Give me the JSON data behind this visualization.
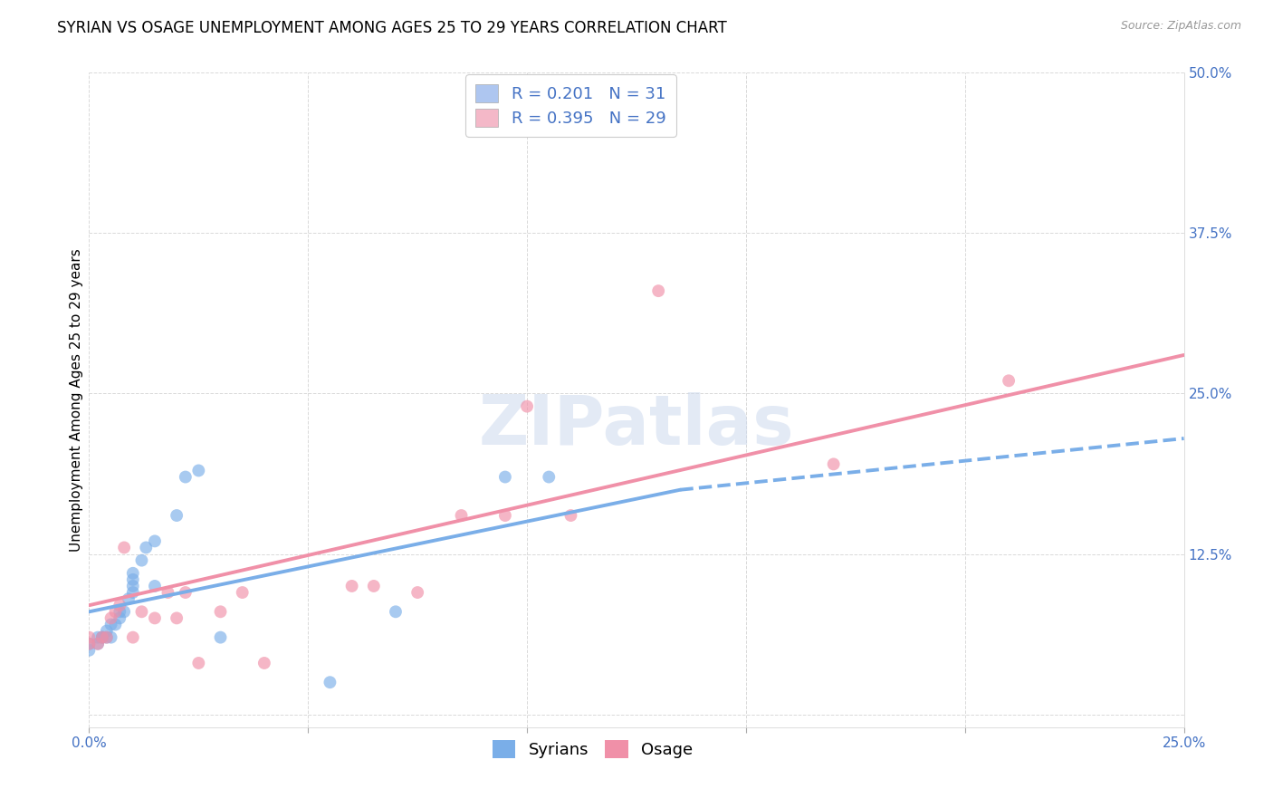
{
  "title": "SYRIAN VS OSAGE UNEMPLOYMENT AMONG AGES 25 TO 29 YEARS CORRELATION CHART",
  "source": "Source: ZipAtlas.com",
  "ylabel": "Unemployment Among Ages 25 to 29 years",
  "xlim": [
    0.0,
    0.25
  ],
  "ylim": [
    -0.01,
    0.5
  ],
  "xticks": [
    0.0,
    0.05,
    0.1,
    0.15,
    0.2,
    0.25
  ],
  "yticks": [
    0.0,
    0.125,
    0.25,
    0.375,
    0.5
  ],
  "syrians_x": [
    0.0,
    0.0,
    0.002,
    0.002,
    0.003,
    0.003,
    0.004,
    0.004,
    0.005,
    0.005,
    0.006,
    0.007,
    0.007,
    0.008,
    0.009,
    0.01,
    0.01,
    0.01,
    0.01,
    0.012,
    0.013,
    0.015,
    0.015,
    0.02,
    0.022,
    0.025,
    0.03,
    0.055,
    0.07,
    0.095,
    0.105
  ],
  "syrians_y": [
    0.05,
    0.055,
    0.055,
    0.06,
    0.06,
    0.06,
    0.06,
    0.065,
    0.06,
    0.07,
    0.07,
    0.075,
    0.08,
    0.08,
    0.09,
    0.095,
    0.1,
    0.105,
    0.11,
    0.12,
    0.13,
    0.1,
    0.135,
    0.155,
    0.185,
    0.19,
    0.06,
    0.025,
    0.08,
    0.185,
    0.185
  ],
  "osage_x": [
    0.0,
    0.0,
    0.002,
    0.003,
    0.004,
    0.005,
    0.006,
    0.007,
    0.008,
    0.01,
    0.012,
    0.015,
    0.018,
    0.02,
    0.022,
    0.025,
    0.03,
    0.035,
    0.04,
    0.06,
    0.065,
    0.075,
    0.085,
    0.095,
    0.1,
    0.11,
    0.13,
    0.17,
    0.21
  ],
  "osage_y": [
    0.055,
    0.06,
    0.055,
    0.06,
    0.06,
    0.075,
    0.08,
    0.085,
    0.13,
    0.06,
    0.08,
    0.075,
    0.095,
    0.075,
    0.095,
    0.04,
    0.08,
    0.095,
    0.04,
    0.1,
    0.1,
    0.095,
    0.155,
    0.155,
    0.24,
    0.155,
    0.33,
    0.195,
    0.26
  ],
  "syrians_color": "#7aaee8",
  "osage_color": "#f090a8",
  "syrians_line_solid": {
    "x0": 0.0,
    "x1": 0.135,
    "y0": 0.08,
    "y1": 0.175
  },
  "syrians_line_dashed": {
    "x0": 0.135,
    "x1": 0.25,
    "y0": 0.175,
    "y1": 0.215
  },
  "osage_line_solid": {
    "x0": 0.0,
    "x1": 0.25,
    "y0": 0.085,
    "y1": 0.28
  },
  "background_color": "#ffffff",
  "grid_color": "#d0d0d0",
  "title_fontsize": 12,
  "label_fontsize": 11,
  "tick_fontsize": 11,
  "marker_size": 100,
  "legend_box_color_1": "#aec6f0",
  "legend_box_color_2": "#f4b8c8",
  "legend_text_color": "#4472c4",
  "legend_line1": "R = 0.201   N = 31",
  "legend_line2": "R = 0.395   N = 29"
}
